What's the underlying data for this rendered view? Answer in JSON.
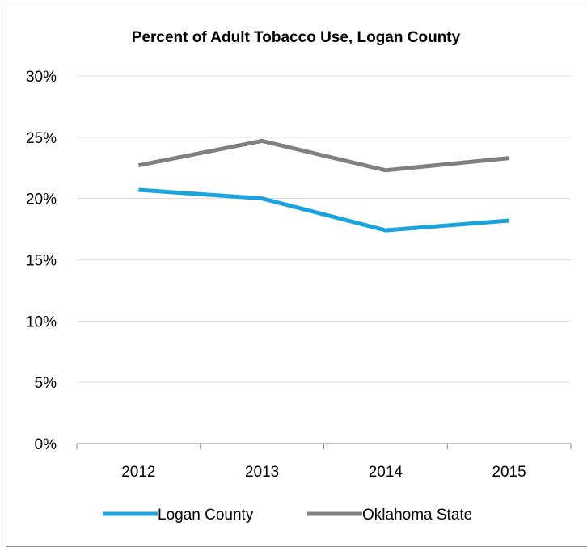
{
  "chart_data": {
    "type": "line",
    "title": "Percent of Adult Tobacco Use, Logan County",
    "categories": [
      "2012",
      "2013",
      "2014",
      "2015"
    ],
    "ylim": [
      0,
      30
    ],
    "yticks": [
      0,
      5,
      10,
      15,
      20,
      25,
      30
    ],
    "ytick_labels": [
      "0%",
      "5%",
      "10%",
      "15%",
      "20%",
      "25%",
      "30%"
    ],
    "grid": true,
    "legend_position": "bottom",
    "series": [
      {
        "name": "Logan County",
        "values": [
          20.7,
          20.0,
          17.4,
          18.2
        ],
        "color": "#1aa3dc"
      },
      {
        "name": "Oklahoma State",
        "values": [
          22.7,
          24.7,
          22.3,
          23.3
        ],
        "color": "#808080"
      }
    ]
  }
}
